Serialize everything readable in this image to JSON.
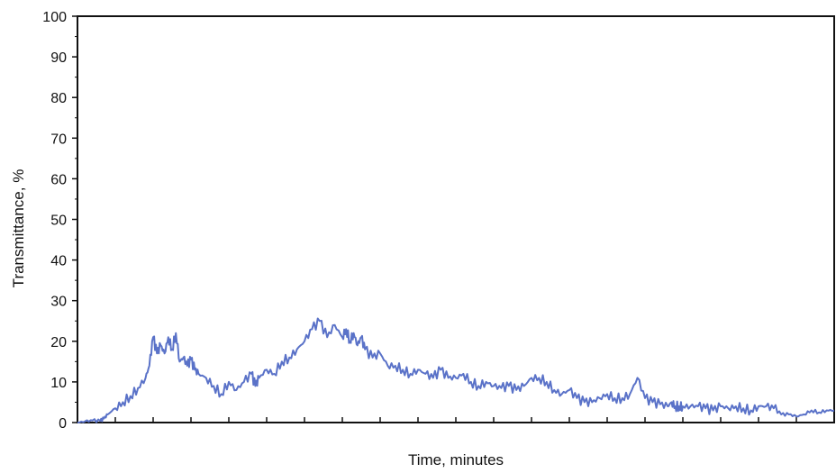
{
  "chart_data": {
    "type": "line",
    "title": "",
    "xlabel": "Time, minutes",
    "ylabel": "Transmittance, %",
    "ylim": [
      0,
      100
    ],
    "xlim": [
      0,
      100
    ],
    "yticks": [
      "0",
      "10",
      "20",
      "30",
      "40",
      "50",
      "60",
      "70",
      "80",
      "90",
      "100"
    ],
    "x_tick_labels_shown": false,
    "x_minor_ticks": 20,
    "grid": false,
    "legend": "none",
    "series": [
      {
        "color": "#5a72c8",
        "x": [
          0,
          1,
          2,
          3,
          3.5,
          4,
          5,
          6,
          7,
          8,
          9,
          9.5,
          10,
          10.5,
          11,
          11.5,
          12,
          12.5,
          13,
          13.5,
          14,
          14.5,
          15,
          15.5,
          16,
          17,
          18,
          19,
          20,
          21,
          22,
          23,
          23.5,
          24,
          25,
          26,
          27,
          28,
          29,
          30,
          31,
          32,
          33,
          34,
          35,
          35.5,
          36,
          36.5,
          37,
          37.5,
          38,
          39,
          40,
          41,
          42,
          43,
          44,
          45,
          46,
          47,
          48,
          49,
          50,
          51,
          52,
          53,
          54,
          55,
          56,
          57,
          58,
          59,
          60,
          61,
          62,
          63,
          64,
          65,
          66,
          67,
          68,
          69,
          70,
          71,
          72,
          73,
          74,
          75,
          76,
          77,
          78,
          78.5,
          79,
          79.5,
          80,
          81,
          82,
          83,
          84,
          85,
          86,
          87,
          88,
          89,
          90,
          91,
          92,
          93,
          94,
          95,
          96,
          97,
          98,
          99,
          100
        ],
        "y": [
          0,
          0.3,
          0.5,
          0.4,
          1,
          2,
          3.5,
          5,
          6.5,
          8.5,
          11,
          14,
          21,
          17,
          19,
          17,
          21,
          18,
          22,
          15,
          16,
          14,
          15.5,
          13,
          12,
          11,
          9,
          7,
          10,
          8,
          10,
          12,
          9,
          11,
          13,
          12,
          15,
          16,
          18,
          20,
          23,
          25,
          21,
          24,
          21,
          23,
          20,
          22,
          19,
          21,
          18,
          16,
          17,
          14,
          14,
          13,
          12,
          13,
          12,
          11,
          13,
          11,
          11,
          12,
          10,
          9,
          10,
          9,
          8.5,
          9,
          8,
          9,
          11,
          11,
          10,
          8,
          7,
          8,
          6,
          5,
          5,
          6,
          7,
          6,
          6,
          7,
          11,
          6,
          5,
          4.5,
          4,
          5,
          4,
          4,
          4,
          4,
          4,
          3.5,
          3,
          4,
          3.5,
          4,
          3.5,
          3,
          4,
          4,
          3.5,
          2,
          2,
          1.5,
          2,
          3,
          2.5,
          3,
          3
        ]
      }
    ]
  }
}
